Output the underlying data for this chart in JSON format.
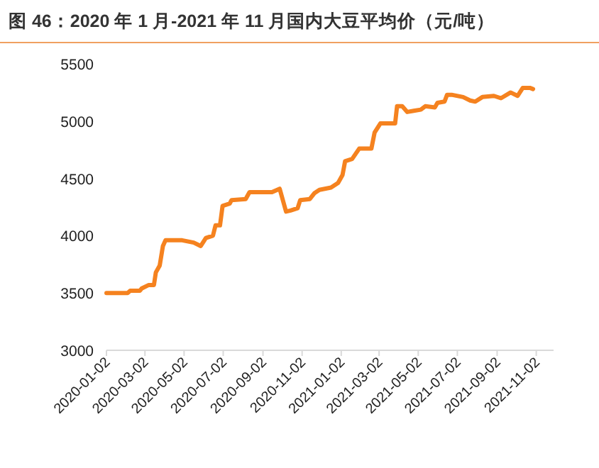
{
  "chart_data": {
    "type": "line",
    "title": "图 46：2020 年 1 月-2021 年 11 月国内大豆平均价（元/吨）",
    "x": [
      "2020-01-02",
      "2020-02-04",
      "2020-02-08",
      "2020-02-23",
      "2020-02-26",
      "2020-03-08",
      "2020-03-16",
      "2020-03-19",
      "2020-03-25",
      "2020-03-30",
      "2020-04-03",
      "2020-04-29",
      "2020-05-17",
      "2020-05-28",
      "2020-06-05",
      "2020-06-16",
      "2020-06-20",
      "2020-06-27",
      "2020-07-01",
      "2020-07-12",
      "2020-07-15",
      "2020-08-06",
      "2020-08-12",
      "2020-09-16",
      "2020-09-28",
      "2020-10-08",
      "2020-10-15",
      "2020-10-26",
      "2020-10-30",
      "2020-11-14",
      "2020-11-21",
      "2020-11-29",
      "2020-12-17",
      "2020-12-28",
      "2021-01-04",
      "2021-01-08",
      "2021-01-19",
      "2021-01-30",
      "2021-02-18",
      "2021-02-23",
      "2021-03-04",
      "2021-03-27",
      "2021-03-30",
      "2021-04-07",
      "2021-04-15",
      "2021-04-25",
      "2021-05-06",
      "2021-05-13",
      "2021-05-28",
      "2021-06-01",
      "2021-06-12",
      "2021-06-16",
      "2021-06-23",
      "2021-07-11",
      "2021-07-22",
      "2021-07-30",
      "2021-08-10",
      "2021-08-28",
      "2021-09-08",
      "2021-09-23",
      "2021-10-04",
      "2021-10-12",
      "2021-10-23",
      "2021-10-28"
    ],
    "series": [
      {
        "color": "#f5821f",
        "values": [
          3500,
          3500,
          3520,
          3520,
          3540,
          3570,
          3570,
          3680,
          3740,
          3910,
          3960,
          3960,
          3940,
          3910,
          3980,
          4000,
          4090,
          4090,
          4260,
          4280,
          4310,
          4320,
          4380,
          4380,
          4410,
          4210,
          4220,
          4240,
          4310,
          4320,
          4370,
          4400,
          4420,
          4460,
          4530,
          4650,
          4670,
          4760,
          4760,
          4900,
          4980,
          4980,
          5130,
          5130,
          5080,
          5090,
          5100,
          5130,
          5120,
          5160,
          5170,
          5230,
          5230,
          5210,
          5180,
          5170,
          5210,
          5220,
          5200,
          5250,
          5220,
          5290,
          5290,
          5280
        ]
      }
    ],
    "xlim": [
      "2020-01-02",
      "2021-11-29"
    ],
    "xticks": [
      "2020-01-02",
      "2020-03-02",
      "2020-05-02",
      "2020-07-02",
      "2020-09-02",
      "2020-11-02",
      "2021-01-02",
      "2021-03-02",
      "2021-05-02",
      "2021-07-02",
      "2021-09-02",
      "2021-11-02"
    ],
    "ylim": [
      3000,
      5500
    ],
    "yticks": [
      3000,
      3500,
      4000,
      4500,
      5000,
      5500
    ],
    "grid": false,
    "marker": "none",
    "line_style": "solid"
  }
}
